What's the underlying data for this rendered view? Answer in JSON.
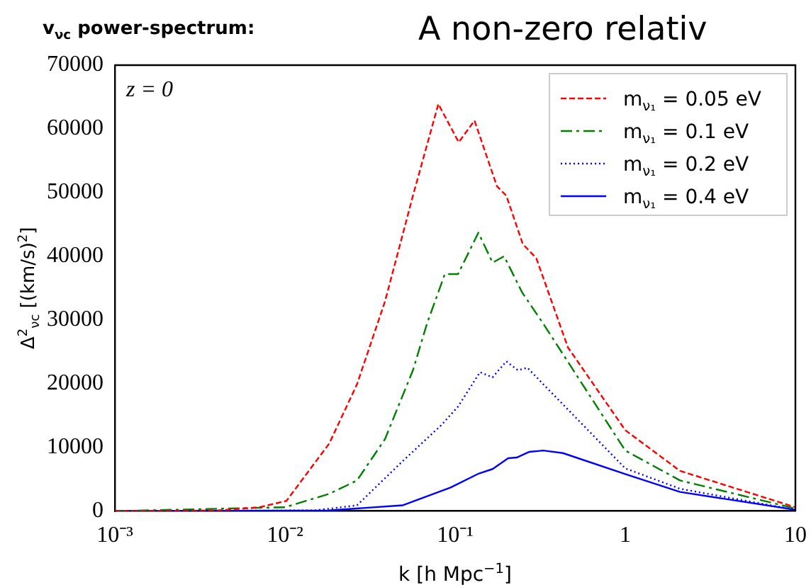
{
  "chart_data": {
    "type": "line",
    "title": "v$_{νc}$ power-spectrum:",
    "subtitle": "A non-zero relativ",
    "xlabel": "k [h Mpc$^{−1}$]",
    "ylabel": "Δ$^{2}$$_{νc}$ [(km/s)$^{2}$]",
    "annotations": [
      "z = 0"
    ],
    "log": "x",
    "grid": false,
    "legend": "top right",
    "marker": "none",
    "xlim": [
      0.001,
      10
    ],
    "xticks": [
      {
        "value": 0.001,
        "label": "10⁻³"
      },
      {
        "value": 0.01,
        "label": "10⁻²"
      },
      {
        "value": 0.1,
        "label": "10⁻¹"
      },
      1,
      10
    ],
    "ylim": [
      0,
      70000
    ],
    "yticks": [
      0,
      10000,
      20000,
      30000,
      40000,
      50000,
      60000,
      70000
    ],
    "series": [
      {
        "name": "m$_{ν₁}$ = 0.05 eV",
        "color": "#ff0000",
        "line_style": "dashed",
        "x": [
          0.001,
          0.004,
          0.0071,
          0.0102,
          0.0182,
          0.0265,
          0.0387,
          0.0565,
          0.0797,
          0.105,
          0.13,
          0.176,
          0.2,
          0.25,
          0.3,
          0.46,
          1,
          2.1,
          10
        ],
        "values": [
          0,
          100,
          600,
          1600,
          10600,
          19900,
          32900,
          49500,
          63900,
          57900,
          61300,
          51000,
          49500,
          41900,
          39700,
          25700,
          12700,
          6300,
          600
        ]
      },
      {
        "name": "m$_{ν₁}$ = 0.1 eV",
        "color": "#008000",
        "line_style": "dashdot",
        "x": [
          0.001,
          0.01,
          0.0182,
          0.0265,
          0.0387,
          0.0565,
          0.0683,
          0.087,
          0.104,
          0.137,
          0.166,
          0.194,
          0.248,
          0.33,
          1,
          2.1,
          10
        ],
        "values": [
          0,
          600,
          2700,
          4800,
          11300,
          22100,
          29400,
          37200,
          37200,
          43700,
          39000,
          40000,
          34300,
          29400,
          9500,
          4800,
          400
        ]
      },
      {
        "name": "m$_{ν₁}$ = 0.2 eV",
        "color": "#0000ff",
        "line_style": "dotted",
        "x": [
          0.001,
          0.015,
          0.0265,
          0.049,
          0.083,
          0.104,
          0.14,
          0.166,
          0.2,
          0.234,
          0.266,
          0.33,
          1,
          2.1,
          10
        ],
        "values": [
          0,
          100,
          900,
          7800,
          13500,
          16400,
          21800,
          21000,
          23500,
          22100,
          22500,
          19900,
          6700,
          3500,
          200
        ]
      },
      {
        "name": "m$_{ν₁}$ = 0.4 eV",
        "color": "#0000ff",
        "line_style": "solid",
        "x": [
          0.001,
          0.018,
          0.049,
          0.094,
          0.138,
          0.166,
          0.205,
          0.23,
          0.273,
          0.33,
          0.43,
          1,
          2.1,
          10
        ],
        "values": [
          0,
          100,
          900,
          3700,
          5900,
          6600,
          8300,
          8400,
          9300,
          9500,
          9100,
          5800,
          3000,
          200
        ]
      }
    ]
  }
}
